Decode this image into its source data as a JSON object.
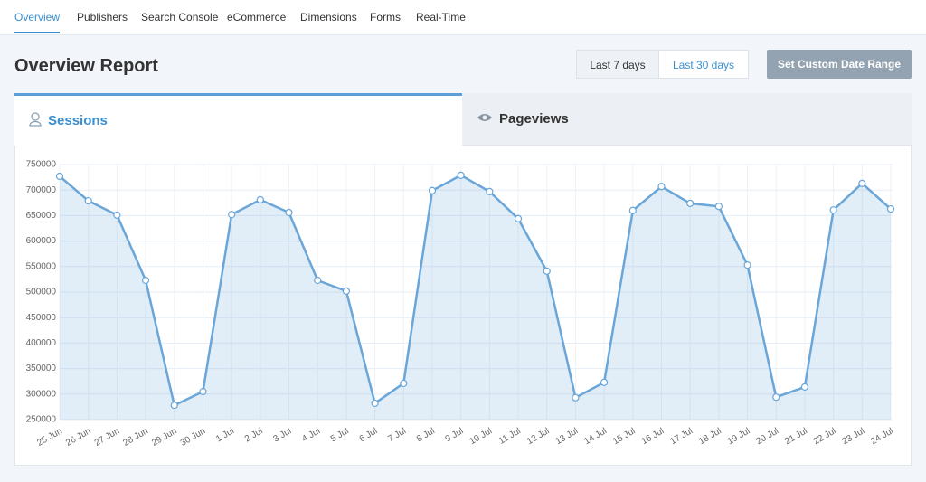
{
  "nav": {
    "items": [
      "Overview",
      "Publishers",
      "Search Console",
      "eCommerce",
      "Dimensions",
      "Forms",
      "Real-Time"
    ]
  },
  "header": {
    "title": "Overview Report",
    "buttons": [
      "Last 7 days",
      "Last 30 days",
      "Set Custom Date Range"
    ]
  },
  "tabs": [
    "Sessions",
    "Pageviews"
  ],
  "chart_data": {
    "type": "area",
    "categories": [
      "25 Jun",
      "26 Jun",
      "27 Jun",
      "28 Jun",
      "29 Jun",
      "30 Jun",
      "1 Jul",
      "2 Jul",
      "3 Jul",
      "4 Jul",
      "5 Jul",
      "6 Jul",
      "7 Jul",
      "8 Jul",
      "9 Jul",
      "10 Jul",
      "11 Jul",
      "12 Jul",
      "13 Jul",
      "14 Jul",
      "15 Jul",
      "16 Jul",
      "17 Jul",
      "18 Jul",
      "19 Jul",
      "20 Jul",
      "21 Jul",
      "22 Jul",
      "23 Jul",
      "24 Jul"
    ],
    "values": [
      727000,
      679000,
      651000,
      523000,
      278000,
      305000,
      652000,
      681000,
      656000,
      523000,
      502000,
      282000,
      321000,
      699000,
      729000,
      697000,
      644000,
      541000,
      293000,
      323000,
      660000,
      707000,
      674000,
      668000,
      553000,
      294000,
      314000,
      661000,
      713000,
      663000
    ],
    "color": "#6aa6d8",
    "ylim": [
      250000,
      750000
    ],
    "yticks": [
      250000,
      300000,
      350000,
      400000,
      450000,
      500000,
      550000,
      600000,
      650000,
      700000,
      750000
    ],
    "grid": true
  }
}
